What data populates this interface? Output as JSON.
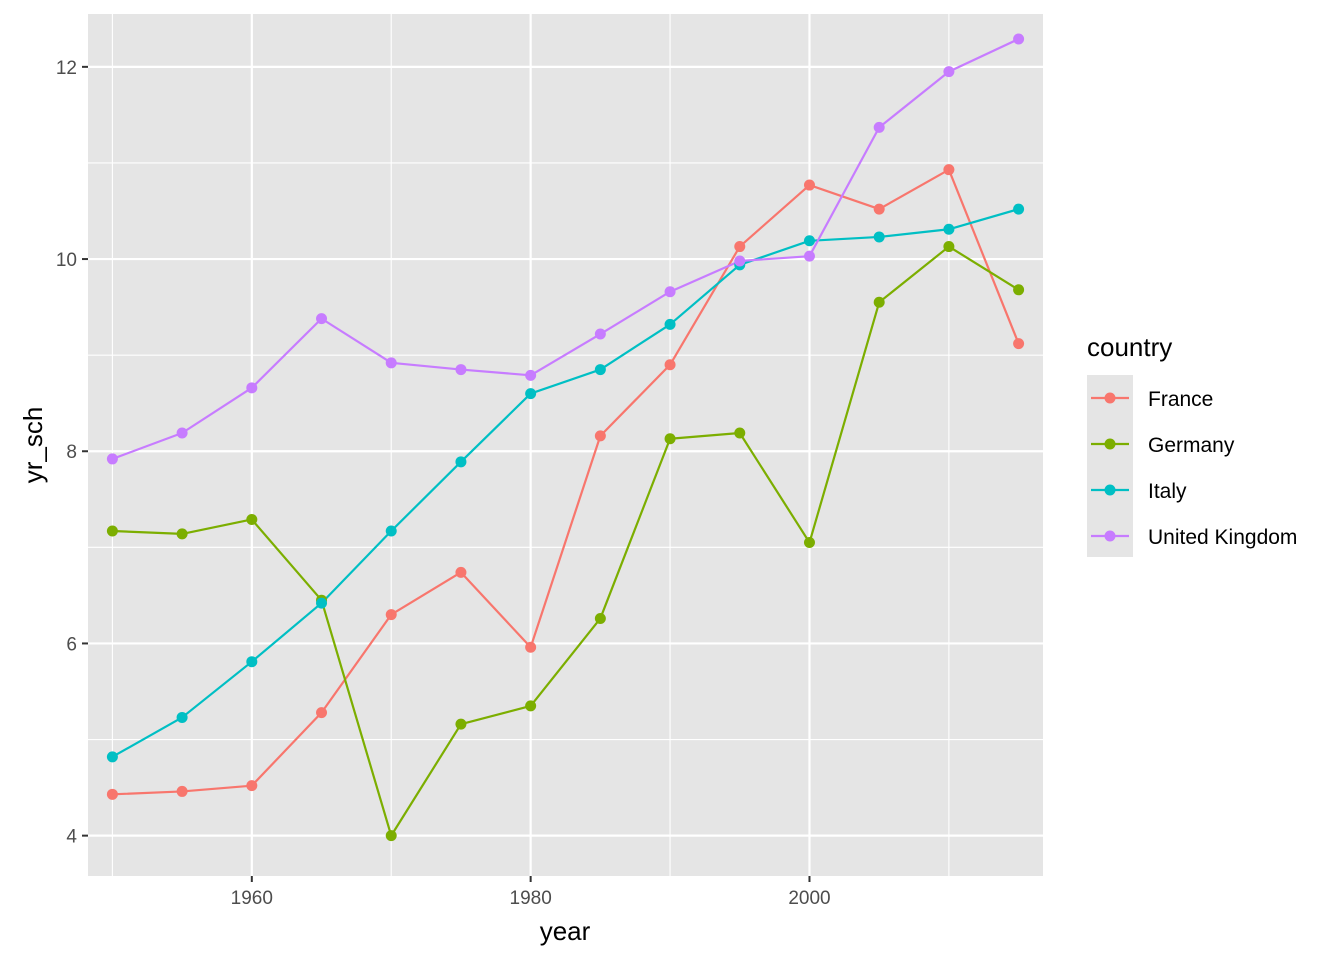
{
  "chart_data": {
    "type": "line",
    "xlabel": "year",
    "ylabel": "yr_sch",
    "x": [
      1950,
      1955,
      1960,
      1965,
      1970,
      1975,
      1980,
      1985,
      1990,
      1995,
      2000,
      2005,
      2010,
      2015
    ],
    "xlim": [
      1948.25,
      2016.75
    ],
    "ylim": [
      3.58,
      12.55
    ],
    "x_ticks": [
      1960,
      1980,
      2000
    ],
    "x_tick_labels": [
      "1960",
      "1980",
      "2000"
    ],
    "y_ticks": [
      4,
      6,
      8,
      10,
      12
    ],
    "y_tick_labels": [
      "4",
      "6",
      "8",
      "10",
      "12"
    ],
    "grid": true,
    "panel_background": "#e5e5e5",
    "grid_color": "#ffffff",
    "legend": {
      "title": "country",
      "position": "right"
    },
    "series": [
      {
        "name": "France",
        "color": "#f8766d",
        "values": [
          4.43,
          4.46,
          4.52,
          5.28,
          6.3,
          6.74,
          5.96,
          8.16,
          8.9,
          10.13,
          10.77,
          10.52,
          10.93,
          9.12
        ]
      },
      {
        "name": "Germany",
        "color": "#7cae00",
        "values": [
          7.17,
          7.14,
          7.29,
          6.45,
          4.0,
          5.16,
          5.35,
          6.26,
          8.13,
          8.19,
          7.05,
          9.55,
          10.13,
          9.68
        ]
      },
      {
        "name": "Italy",
        "color": "#00bfc4",
        "values": [
          4.82,
          5.23,
          5.81,
          6.42,
          7.17,
          7.89,
          8.6,
          8.85,
          9.32,
          9.94,
          10.19,
          10.23,
          10.31,
          10.52
        ]
      },
      {
        "name": "United Kingdom",
        "color": "#c77cff",
        "values": [
          7.92,
          8.19,
          8.66,
          9.38,
          8.92,
          8.85,
          8.79,
          9.22,
          9.66,
          9.98,
          10.03,
          11.37,
          11.95,
          12.29
        ]
      }
    ]
  }
}
